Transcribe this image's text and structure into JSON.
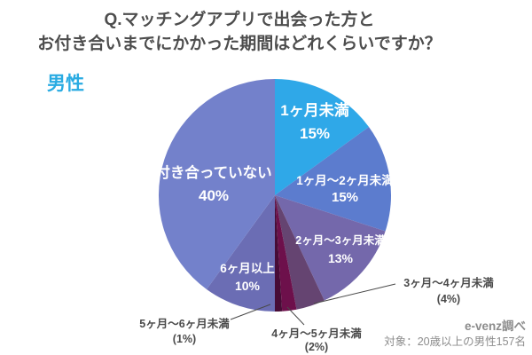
{
  "title": {
    "line1": "Q.マッチングアプリで出会った方と",
    "line2": "お付き合いまでにかかった期間はどれくらいですか？"
  },
  "gender_label": "男性",
  "source": {
    "line1": "e-venz調べ",
    "line2": "対象：20歳以上の男性157名"
  },
  "colors": {
    "title_text": "#4d4d4d",
    "gender_label": "#29abe2",
    "outside_label_text": "#4a4a4a",
    "inside_label_text": "#ffffff",
    "leader_line": "#4a4a4a",
    "source_text": "#8c8c8c",
    "background": "#ffffff"
  },
  "chart_data": {
    "type": "pie",
    "title": "Q.マッチングアプリで出会った方と お付き合いまでにかかった期間はどれくらいですか？",
    "group_label": "男性",
    "unit": "%",
    "start_angle": "12-o'clock, clockwise",
    "legend_position": "none (labels on/around slices)",
    "slices": [
      {
        "label": "1ヶ月未満",
        "value": 15,
        "value_label": "15%",
        "color": "#2fa8e8",
        "placement": "inside"
      },
      {
        "label": "1ヶ月～2ヶ月未満",
        "value": 15,
        "value_label": "15%",
        "color": "#5c7cce",
        "placement": "inside"
      },
      {
        "label": "2ヶ月～3ヶ月未満",
        "value": 13,
        "value_label": "13%",
        "color": "#7468ab",
        "placement": "inside"
      },
      {
        "label": "3ヶ月～4ヶ月未満",
        "value": 4,
        "value_label": "(4%)",
        "color": "#654471",
        "placement": "outside"
      },
      {
        "label": "4ヶ月～5ヶ月未満",
        "value": 2,
        "value_label": "(2%)",
        "color": "#6d104b",
        "placement": "outside"
      },
      {
        "label": "5ヶ月～6ヶ月未満",
        "value": 1,
        "value_label": "(1%)",
        "color": "#470c36",
        "placement": "outside"
      },
      {
        "label": "6ヶ月以上",
        "value": 10,
        "value_label": "10%",
        "color": "#6b6db4",
        "placement": "inside"
      },
      {
        "label": "付き合っていない",
        "value": 40,
        "value_label": "40%",
        "color": "#7381cb",
        "placement": "inside"
      }
    ],
    "source_note": "e-venz調べ",
    "sample_note": "対象：20歳以上の男性157名"
  }
}
